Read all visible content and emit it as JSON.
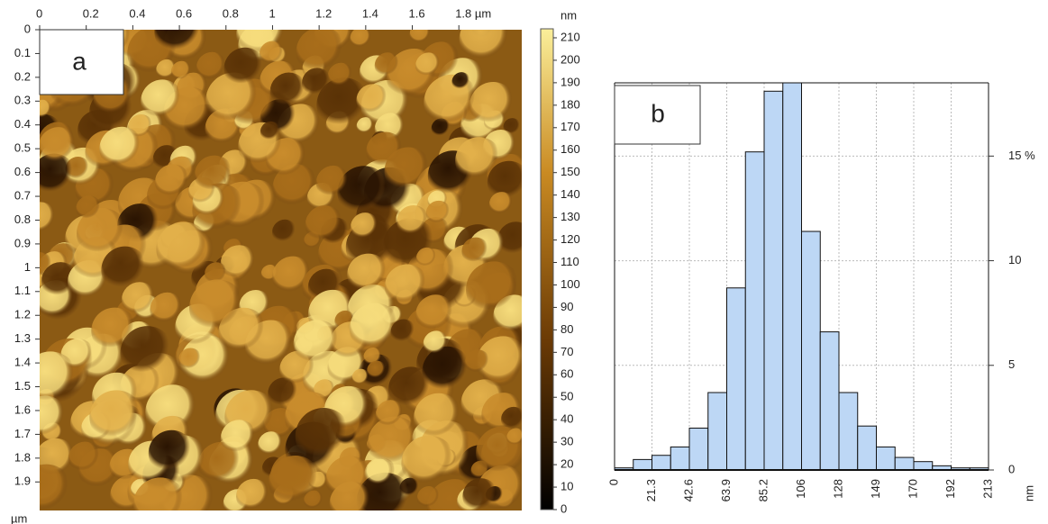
{
  "chart_data": [
    {
      "type": "image",
      "label": "a",
      "xlim": [
        0,
        2.07
      ],
      "xticks": [
        0,
        0.2,
        0.4,
        0.6,
        0.8,
        1,
        1.2,
        1.4,
        1.6,
        {
          "value": 1.8,
          "label": "1.8 µm"
        }
      ],
      "ylim": [
        0,
        2.02
      ],
      "yticks": [
        0,
        0.1,
        0.2,
        0.3,
        0.4,
        0.5,
        0.6,
        0.7,
        0.8,
        0.9,
        1,
        1.1,
        1.2,
        1.3,
        1.4,
        1.5,
        1.6,
        1.7,
        1.8,
        1.9
      ],
      "y_unit": "µm",
      "colorbar_lim": [
        0,
        214
      ],
      "colorbar_ticks": [
        0,
        10,
        20,
        30,
        40,
        50,
        60,
        70,
        80,
        90,
        100,
        110,
        120,
        130,
        140,
        150,
        160,
        170,
        180,
        190,
        200,
        210
      ],
      "colorbar_label": "nm"
    },
    {
      "type": "histogram",
      "label": "b",
      "color": "#bdd7f5",
      "grid": true,
      "bins": [
        0,
        10.65,
        21.3,
        31.95,
        42.6,
        53.25,
        63.9,
        74.55,
        85.2,
        95.85,
        106.5,
        117.15,
        127.8,
        138.45,
        149.1,
        159.75,
        170.4,
        181.05,
        191.7,
        202.35,
        213
      ],
      "values": [
        0.1,
        0.5,
        0.7,
        1.1,
        2.0,
        3.7,
        8.7,
        15.2,
        18.1,
        18.5,
        11.4,
        6.6,
        3.7,
        2.1,
        1.1,
        0.6,
        0.4,
        0.2,
        0.1,
        0.1
      ],
      "xlim": [
        0,
        213
      ],
      "xticks": [
        0,
        21.3,
        42.6,
        63.9,
        85.2,
        {
          "value": 106.5,
          "label": "106"
        },
        {
          "value": 127.8,
          "label": "128"
        },
        {
          "value": 149.1,
          "label": "149"
        },
        {
          "value": 170.4,
          "label": "170"
        },
        {
          "value": 191.7,
          "label": "192"
        },
        213
      ],
      "xlabel": "nm",
      "ylim": [
        0,
        18.5
      ],
      "yticks": [
        0,
        5,
        10,
        {
          "value": 15,
          "label": "15 %"
        }
      ]
    }
  ]
}
